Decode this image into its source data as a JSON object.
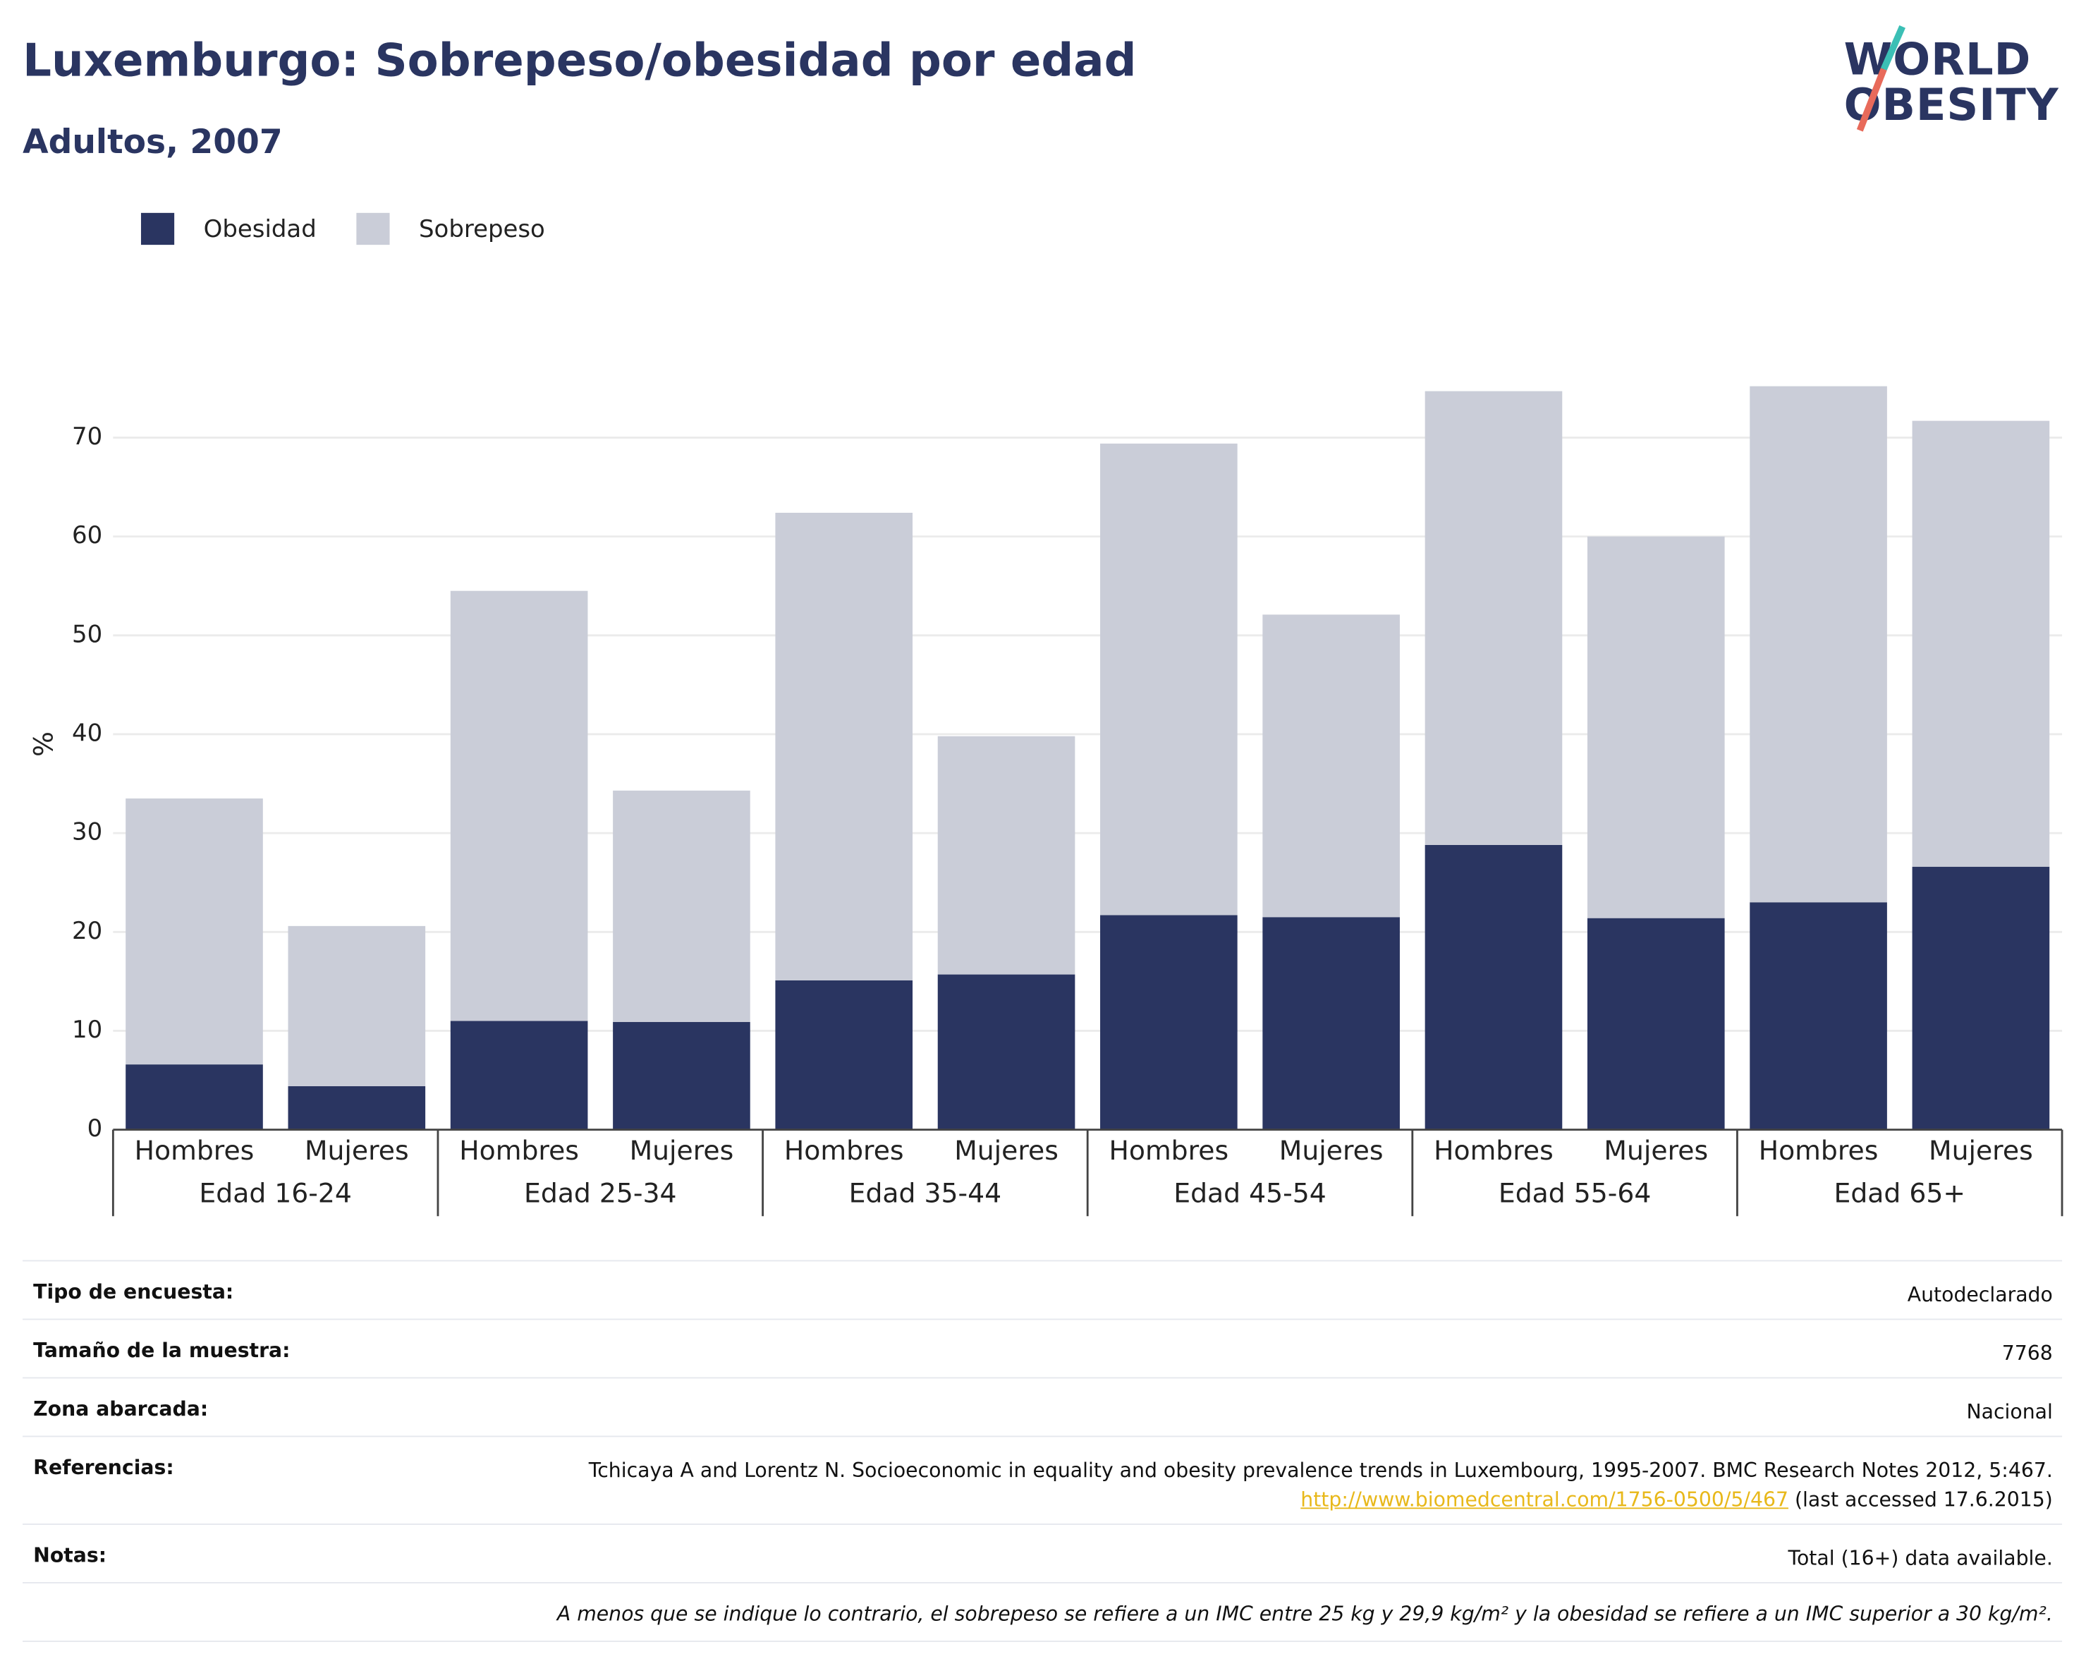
{
  "chart_data": {
    "type": "stacked_bar",
    "title": "Luxemburgo: Sobrepeso/obesidad por edad",
    "subtitle": "Adultos, 2007",
    "y_label": "%",
    "categories": [
      "Hombres",
      "Mujeres",
      "Hombres",
      "Mujeres",
      "Hombres",
      "Mujeres",
      "Hombres",
      "Mujeres",
      "Hombres",
      "Mujeres",
      "Hombres",
      "Mujeres"
    ],
    "groups": [
      "Edad 16-24",
      "Edad 25-34",
      "Edad 35-44",
      "Edad 45-54",
      "Edad 55-64",
      "Edad 65+"
    ],
    "series": [
      {
        "name": "Obesidad",
        "color": "#2a3561",
        "values": [
          6.6,
          4.4,
          11.0,
          10.9,
          15.1,
          15.7,
          21.7,
          21.5,
          28.8,
          21.4,
          23.0,
          26.6
        ]
      },
      {
        "name": "Sobrepeso",
        "color": "#cacdd8",
        "values": [
          26.9,
          16.2,
          43.5,
          23.4,
          47.3,
          24.1,
          47.7,
          30.6,
          45.9,
          38.6,
          52.2,
          45.1
        ]
      }
    ],
    "ylim": [
      0,
      78
    ],
    "yticks": [
      0,
      10,
      20,
      30,
      40,
      50,
      60,
      70
    ],
    "grid": true
  },
  "logo": [
    "WORLD",
    "OBESITY"
  ],
  "info": [
    {
      "label": "Tipo de encuesta:",
      "value": "Autodeclarado"
    },
    {
      "label": "Tamaño de la muestra:",
      "value": "7768"
    },
    {
      "label": "Zona abarcada:",
      "value": "Nacional"
    },
    {
      "label": "Referencias:",
      "value": "Tchicaya A and Lorentz N. Socioeconomic in equality and obesity prevalence trends in Luxembourg, 1995-2007. BMC Research Notes 2012, 5:467. ",
      "link": "http://www.biomedcentral.com/1756-0500/5/467",
      "after": " (last accessed 17.6.2015)"
    },
    {
      "label": "Notas:",
      "value": "Total (16+) data available."
    }
  ],
  "footnote": "A menos que se indique lo contrario, el sobrepeso se refiere a un IMC entre 25 kg y 29,9 kg/m² y la obesidad se refiere a un IMC superior a 30 kg/m²."
}
